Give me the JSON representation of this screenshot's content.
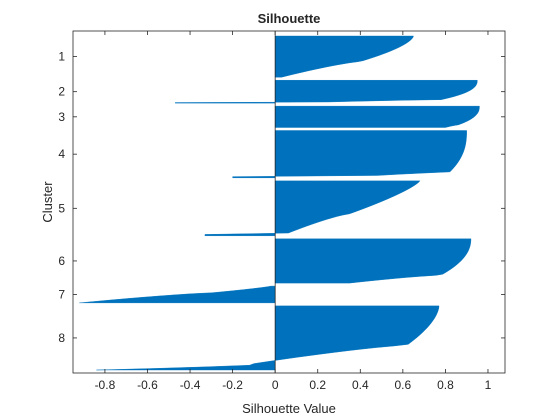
{
  "chart_data": {
    "type": "bar",
    "orientation": "horizontal",
    "title": "Silhouette",
    "xlabel": "Silhouette Value",
    "ylabel": "Cluster",
    "xlim": [
      -0.95,
      1.08
    ],
    "xticks": [
      -0.8,
      -0.6,
      -0.4,
      -0.2,
      0,
      0.2,
      0.4,
      0.6,
      0.8,
      1
    ],
    "xtick_labels": [
      "-0.8",
      "-0.6",
      "-0.4",
      "-0.2",
      "0",
      "0.2",
      "0.4",
      "0.6",
      "0.8",
      "1"
    ],
    "grid": false,
    "bar_color": "#0072BD",
    "clusters": [
      {
        "label": "1",
        "size": 27,
        "max": 0.65,
        "shape": 1.6,
        "knee": 0.62,
        "kneeVal": 0.4,
        "min": 0.03
      },
      {
        "label": "2",
        "size": 15,
        "max": 0.95,
        "shape": 2.5,
        "knee": 0.85,
        "kneeVal": 0.78,
        "min": 0.05,
        "negTail": -0.47
      },
      {
        "label": "3",
        "size": 14,
        "max": 0.96,
        "shape": 2.5,
        "knee": 0.88,
        "kneeVal": 0.86,
        "min": 0.8
      },
      {
        "label": "4",
        "size": 31,
        "max": 0.9,
        "shape": 2.5,
        "knee": 0.88,
        "kneeVal": 0.82,
        "min": 0.3,
        "negTail": -0.2
      },
      {
        "label": "5",
        "size": 36,
        "max": 0.68,
        "shape": 1.3,
        "knee": 0.6,
        "kneeVal": 0.35,
        "min": 0.03,
        "negTail": -0.33
      },
      {
        "label": "6",
        "size": 29,
        "max": 0.92,
        "shape": 2.2,
        "knee": 0.82,
        "kneeVal": 0.78,
        "min": 0.35
      },
      {
        "label": "7",
        "size": 11,
        "max": -0.02,
        "shape": 1.2,
        "knee": 0.4,
        "kneeVal": -0.3,
        "min": -0.92
      },
      {
        "label": "8",
        "size": 42,
        "max": 0.77,
        "shape": 1.7,
        "knee": 0.68,
        "kneeVal": 0.62,
        "min": -0.1,
        "lowTail": -0.84
      }
    ]
  }
}
